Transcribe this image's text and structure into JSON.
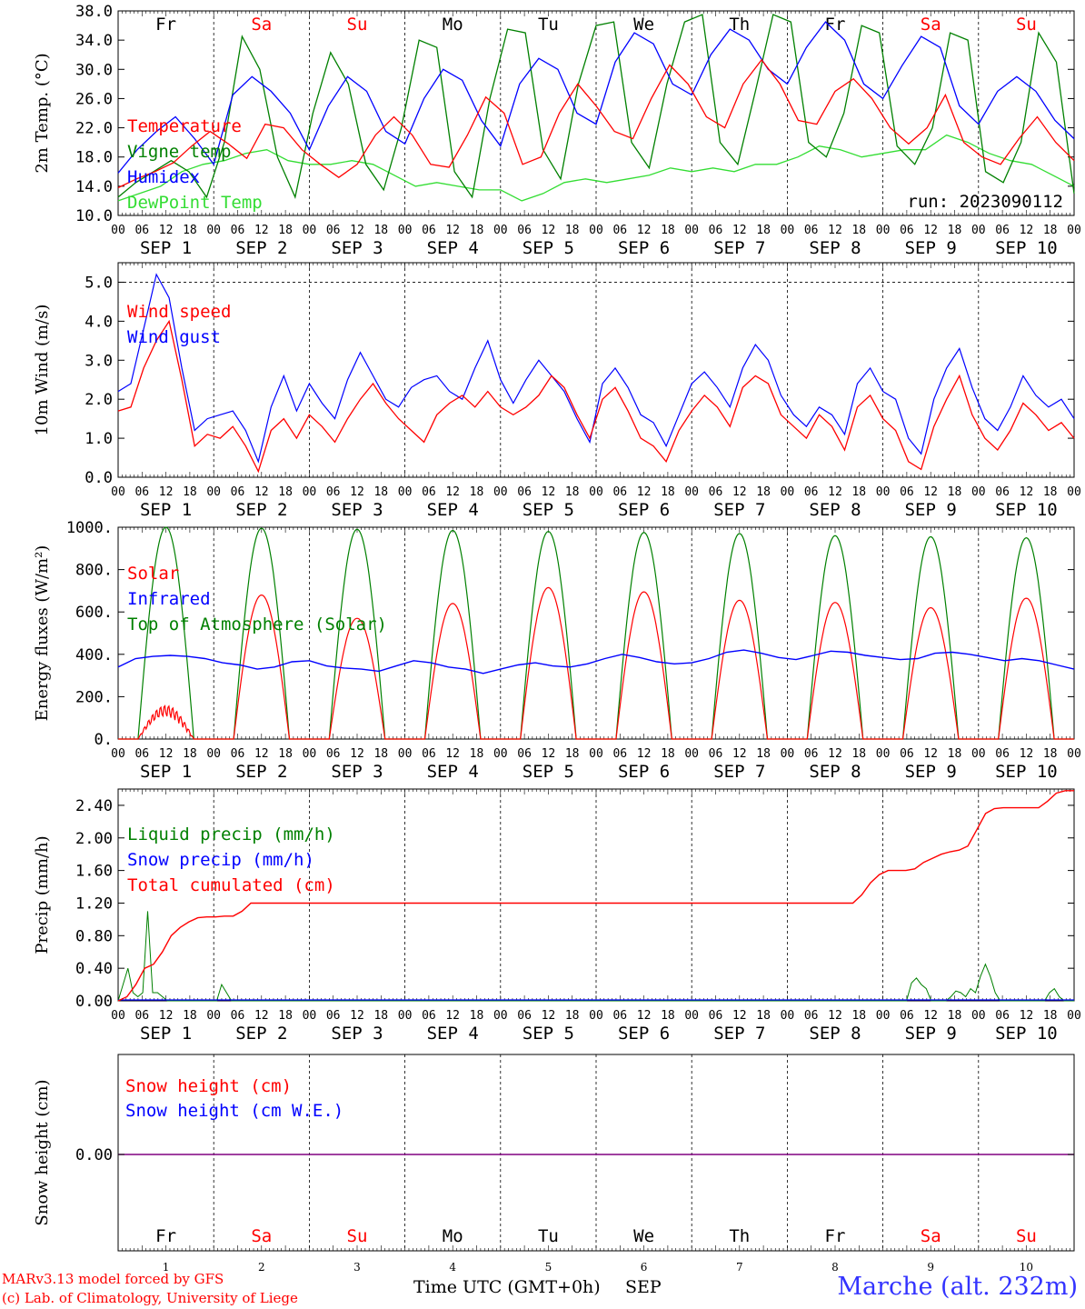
{
  "days": {
    "weekdays": [
      "Fr",
      "Sa",
      "Su",
      "Mo",
      "Tu",
      "We",
      "Th",
      "Fr",
      "Sa",
      "Su"
    ],
    "weekend_flags": [
      false,
      true,
      true,
      false,
      false,
      false,
      false,
      false,
      true,
      true
    ],
    "dates": [
      "1",
      "2",
      "3",
      "4",
      "5",
      "6",
      "7",
      "8",
      "9",
      "10"
    ],
    "month": "SEP",
    "hour_ticks": [
      "00",
      "06",
      "12",
      "18"
    ],
    "final_tick": "00"
  },
  "colors": {
    "red": "#ff0000",
    "blue": "#0000ff",
    "green": "#008000",
    "lightgreen": "#33dd33",
    "purple": "#800080"
  },
  "chart_data": [
    {
      "type": "line",
      "ylabel": "2m Temp. (°C)",
      "ylim": [
        10.0,
        38.0
      ],
      "yticks": [
        "10.0",
        "14.0",
        "18.0",
        "22.0",
        "26.0",
        "30.0",
        "34.0",
        "38.0"
      ],
      "grid": "dashed day separators",
      "legend": "left",
      "annotation": "run: 2023090112",
      "series": [
        {
          "name": "Temperature",
          "color": "red",
          "values": [
            13.8,
            15.0,
            16.0,
            17.2,
            19.5,
            21.5,
            19.8,
            17.8,
            22.5,
            22.0,
            19.0,
            17.0,
            15.2,
            17.0,
            21.0,
            23.5,
            21.0,
            17.0,
            16.6,
            21.0,
            26.2,
            24.0,
            17.0,
            18.0,
            24.0,
            28.0,
            25.0,
            21.5,
            20.5,
            26.0,
            30.6,
            28.0,
            23.5,
            22.0,
            28.0,
            31.3,
            28.0,
            23.0,
            22.5,
            27.0,
            28.7,
            26.0,
            22.0,
            19.8,
            22.0,
            26.5,
            20.0,
            18.0,
            17.0,
            20.5,
            23.5,
            20.0,
            17.5
          ]
        },
        {
          "name": "Vigne temp",
          "color": "green",
          "values": [
            12.5,
            14.5,
            16.0,
            17.5,
            16.0,
            12.5,
            20.0,
            34.5,
            30.0,
            18.0,
            12.5,
            24.0,
            32.3,
            28.0,
            17.0,
            13.5,
            22.0,
            34.0,
            33.0,
            16.0,
            12.5,
            26.0,
            35.5,
            35.0,
            19.0,
            15.0,
            28.0,
            36.0,
            36.5,
            20.0,
            16.5,
            28.0,
            36.5,
            37.5,
            20.0,
            17.0,
            27.0,
            37.5,
            36.5,
            20.0,
            18.0,
            24.0,
            36.0,
            35.0,
            19.5,
            17.0,
            22.0,
            35.0,
            34.0,
            16.0,
            14.5,
            20.0,
            35.0,
            31.0,
            13.0
          ]
        },
        {
          "name": "Humidex",
          "color": "blue",
          "values": [
            15.8,
            19.0,
            21.5,
            23.5,
            20.5,
            17.0,
            26.5,
            29.0,
            27.0,
            24.0,
            19.0,
            25.0,
            29.0,
            27.0,
            21.5,
            19.8,
            26.0,
            30.0,
            28.5,
            23.0,
            19.5,
            28.0,
            31.5,
            30.0,
            24.0,
            22.5,
            31.0,
            35.0,
            33.5,
            28.0,
            26.5,
            32.0,
            35.5,
            34.0,
            30.0,
            28.0,
            33.0,
            36.5,
            34.0,
            28.0,
            26.0,
            30.5,
            34.5,
            33.0,
            25.0,
            22.5,
            27.0,
            29.0,
            27.0,
            23.0,
            20.5
          ]
        },
        {
          "name": "DewPoint Temp",
          "color": "lightgreen",
          "values": [
            12.0,
            13.0,
            14.0,
            16.0,
            17.0,
            17.5,
            18.5,
            19.0,
            17.5,
            17.0,
            17.0,
            17.5,
            17.0,
            15.5,
            14.0,
            14.5,
            14.0,
            13.5,
            13.5,
            12.0,
            13.0,
            14.5,
            15.0,
            14.5,
            15.0,
            15.5,
            16.5,
            16.0,
            16.5,
            16.0,
            17.0,
            17.0,
            18.0,
            19.5,
            19.0,
            18.0,
            18.5,
            19.0,
            19.0,
            21.0,
            20.0,
            18.5,
            17.5,
            17.0,
            15.5,
            14.0
          ]
        }
      ]
    },
    {
      "type": "line",
      "ylabel": "10m Wind (m/s)",
      "ylim": [
        0.0,
        5.5
      ],
      "yticks": [
        "0.0",
        "1.0",
        "2.0",
        "3.0",
        "4.0",
        "5.0"
      ],
      "refline": 5.0,
      "legend": "left",
      "series": [
        {
          "name": "Wind speed",
          "color": "red",
          "values": [
            1.7,
            1.8,
            2.8,
            3.5,
            4.0,
            2.5,
            0.8,
            1.1,
            1.0,
            1.3,
            0.8,
            0.15,
            1.2,
            1.5,
            1.0,
            1.6,
            1.3,
            0.9,
            1.5,
            2.0,
            2.4,
            1.9,
            1.5,
            1.2,
            0.9,
            1.6,
            1.9,
            2.1,
            1.8,
            2.2,
            1.8,
            1.6,
            1.8,
            2.1,
            2.6,
            2.3,
            1.6,
            1.0,
            2.0,
            2.3,
            1.7,
            1.0,
            0.8,
            0.4,
            1.2,
            1.7,
            2.1,
            1.8,
            1.3,
            2.3,
            2.6,
            2.4,
            1.6,
            1.3,
            1.0,
            1.6,
            1.3,
            0.7,
            1.8,
            2.1,
            1.5,
            1.2,
            0.4,
            0.2,
            1.3,
            2.0,
            2.6,
            1.6,
            1.0,
            0.7,
            1.2,
            1.9,
            1.6,
            1.2,
            1.4,
            1.0
          ]
        },
        {
          "name": "Wind gust",
          "color": "blue",
          "values": [
            2.2,
            2.4,
            3.8,
            5.2,
            4.6,
            2.8,
            1.2,
            1.5,
            1.6,
            1.7,
            1.2,
            0.4,
            1.8,
            2.6,
            1.7,
            2.4,
            1.9,
            1.5,
            2.5,
            3.2,
            2.6,
            2.0,
            1.8,
            2.3,
            2.5,
            2.6,
            2.2,
            2.0,
            2.8,
            3.5,
            2.5,
            1.9,
            2.5,
            3.0,
            2.6,
            2.2,
            1.5,
            0.9,
            2.4,
            2.8,
            2.3,
            1.6,
            1.4,
            0.8,
            1.6,
            2.4,
            2.7,
            2.3,
            1.8,
            2.8,
            3.4,
            3.0,
            2.1,
            1.6,
            1.3,
            1.8,
            1.6,
            1.1,
            2.4,
            2.8,
            2.2,
            2.0,
            1.0,
            0.6,
            2.0,
            2.8,
            3.3,
            2.3,
            1.5,
            1.2,
            1.8,
            2.6,
            2.1,
            1.8,
            2.0,
            1.5
          ]
        }
      ]
    },
    {
      "type": "line",
      "ylabel": "Energy fluxes (W/m²)",
      "ylim": [
        0,
        1000
      ],
      "yticks": [
        "0.",
        "200.",
        "400.",
        "600.",
        "800.",
        "1000."
      ],
      "legend": "left",
      "solar_peaks": [
        160,
        680,
        570,
        640,
        715,
        695,
        655,
        645,
        620,
        665
      ],
      "toa_peaks": [
        1000,
        995,
        990,
        985,
        980,
        975,
        970,
        960,
        955,
        950
      ],
      "series": [
        {
          "name": "Solar",
          "color": "red"
        },
        {
          "name": "Infrared",
          "color": "blue",
          "values": [
            340,
            380,
            390,
            395,
            390,
            380,
            360,
            350,
            330,
            340,
            365,
            370,
            345,
            335,
            330,
            320,
            345,
            370,
            360,
            340,
            330,
            310,
            330,
            350,
            360,
            345,
            340,
            355,
            380,
            400,
            385,
            365,
            355,
            360,
            380,
            410,
            420,
            405,
            385,
            375,
            395,
            415,
            410,
            395,
            385,
            375,
            380,
            405,
            410,
            400,
            385,
            370,
            380,
            370,
            350,
            330
          ]
        },
        {
          "name": "Top of Atmosphere (Solar)",
          "color": "green"
        }
      ]
    },
    {
      "type": "line",
      "ylabel": "Precip (mm/h)",
      "ylim": [
        0.0,
        2.6
      ],
      "yticks": [
        "0.00",
        "0.40",
        "0.80",
        "1.20",
        "1.60",
        "2.00",
        "2.40"
      ],
      "legend": "left",
      "series": [
        {
          "name": "Liquid precip (mm/h)",
          "color": "green",
          "values": [
            0.0,
            0.2,
            0.4,
            0.1,
            0.05,
            0.1,
            1.1,
            0.1,
            0.1,
            0.05,
            0.0,
            0.0,
            0.0,
            0.0,
            0.0,
            0.0,
            0.0,
            0.0,
            0.0,
            0.0,
            0.0,
            0.2,
            0.1,
            0.0,
            0.0,
            0.0,
            0.0,
            0.0,
            0.0,
            0.0,
            0.0,
            0.0,
            0.0,
            0.0,
            0.0,
            0.0,
            0.0,
            0.0,
            0.0,
            0.0,
            0.0,
            0.0,
            0.0,
            0.0,
            0.0,
            0.0,
            0.0,
            0.0,
            0.0,
            0.0,
            0.0,
            0.0,
            0.0,
            0.0,
            0.0,
            0.0,
            0.0,
            0.0,
            0.0,
            0.0,
            0.0,
            0.0,
            0.0,
            0.0,
            0.0,
            0.0,
            0.0,
            0.0,
            0.0,
            0.0,
            0.0,
            0.0,
            0.0,
            0.0,
            0.0,
            0.0,
            0.0,
            0.0,
            0.0,
            0.0,
            0.0,
            0.0,
            0.0,
            0.0,
            0.0,
            0.0,
            0.0,
            0.0,
            0.0,
            0.0,
            0.0,
            0.0,
            0.0,
            0.0,
            0.0,
            0.0,
            0.0,
            0.0,
            0.0,
            0.0,
            0.0,
            0.0,
            0.0,
            0.0,
            0.0,
            0.0,
            0.0,
            0.0,
            0.0,
            0.0,
            0.0,
            0.0,
            0.0,
            0.0,
            0.0,
            0.0,
            0.0,
            0.0,
            0.0,
            0.0,
            0.0,
            0.0,
            0.0,
            0.0,
            0.0,
            0.0,
            0.0,
            0.0,
            0.0,
            0.0,
            0.0,
            0.0,
            0.0,
            0.0,
            0.0,
            0.0,
            0.0,
            0.0,
            0.0,
            0.0,
            0.0,
            0.0,
            0.0,
            0.0,
            0.0,
            0.0,
            0.0,
            0.0,
            0.0,
            0.0,
            0.0,
            0.0,
            0.0,
            0.0,
            0.0,
            0.0,
            0.0,
            0.0,
            0.0,
            0.0,
            0.0,
            0.22,
            0.28,
            0.2,
            0.15,
            0.0,
            0.0,
            0.0,
            0.0,
            0.05,
            0.12,
            0.1,
            0.05,
            0.15,
            0.1,
            0.3,
            0.45,
            0.3,
            0.1,
            0.0,
            0.0,
            0.0,
            0.0,
            0.0,
            0.0,
            0.0,
            0.0,
            0.0,
            0.0,
            0.1,
            0.15,
            0.05,
            0.0,
            0.0,
            0.0
          ]
        },
        {
          "name": "Snow precip (mm/h)",
          "color": "blue"
        },
        {
          "name": "Total cumulated (cm)",
          "color": "red",
          "values": [
            0.0,
            0.05,
            0.2,
            0.4,
            0.45,
            0.6,
            0.8,
            0.9,
            0.97,
            1.02,
            1.03,
            1.03,
            1.04,
            1.04,
            1.1,
            1.2,
            1.2,
            1.2,
            1.2,
            1.2,
            1.2,
            1.2,
            1.2,
            1.2,
            1.2,
            1.2,
            1.2,
            1.2,
            1.2,
            1.2,
            1.2,
            1.2,
            1.2,
            1.2,
            1.2,
            1.2,
            1.2,
            1.2,
            1.2,
            1.2,
            1.2,
            1.2,
            1.2,
            1.2,
            1.2,
            1.2,
            1.2,
            1.2,
            1.2,
            1.2,
            1.2,
            1.2,
            1.2,
            1.2,
            1.2,
            1.2,
            1.2,
            1.2,
            1.2,
            1.2,
            1.2,
            1.2,
            1.2,
            1.2,
            1.2,
            1.2,
            1.2,
            1.2,
            1.2,
            1.2,
            1.2,
            1.2,
            1.2,
            1.2,
            1.2,
            1.2,
            1.2,
            1.2,
            1.2,
            1.2,
            1.2,
            1.2,
            1.2,
            1.2,
            1.3,
            1.45,
            1.55,
            1.6,
            1.6,
            1.6,
            1.62,
            1.7,
            1.75,
            1.8,
            1.83,
            1.85,
            1.9,
            2.1,
            2.3,
            2.36,
            2.37,
            2.37,
            2.37,
            2.37,
            2.37,
            2.45,
            2.55,
            2.58,
            2.58
          ]
        }
      ]
    },
    {
      "type": "line",
      "ylabel": "Snow height (cm)",
      "yticks": [
        "0.00"
      ],
      "legend": "left",
      "series": [
        {
          "name": "Snow height (cm)",
          "color": "red",
          "values": [
            0,
            0
          ]
        },
        {
          "name": "Snow height (cm W.E.)",
          "color": "blue",
          "values": [
            0,
            0
          ]
        }
      ]
    }
  ],
  "footer": {
    "xlabel": "Time UTC (GMT+0h)",
    "month": "SEP",
    "credit_line1": "MARv3.13 model forced by GFS",
    "credit_line2": "(c) Lab. of Climatology, University of Liege",
    "station": "Marche (alt. 232m)"
  }
}
